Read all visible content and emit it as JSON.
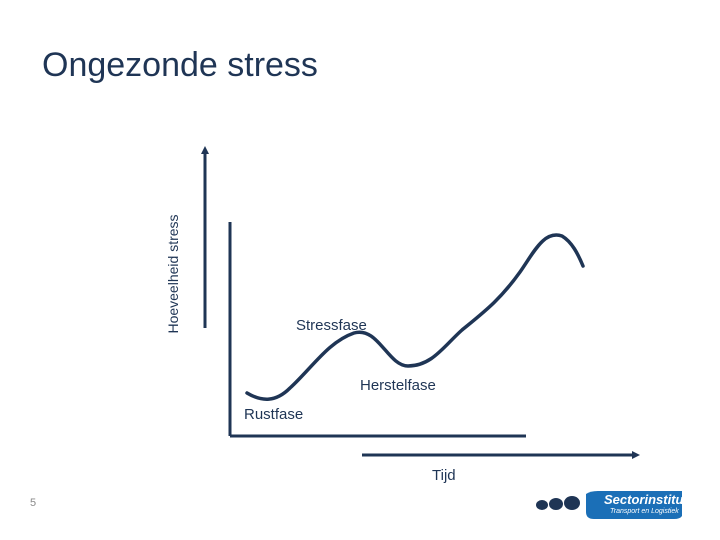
{
  "slide": {
    "title": "Ongezonde stress",
    "page_number": "5"
  },
  "diagram": {
    "y_axis_label": "Hoeveelheid stress",
    "x_axis_label": "Tijd",
    "phases": {
      "rest": "Rustfase",
      "stress": "Stressfase",
      "recovery": "Herstelfase"
    }
  },
  "logo": {
    "name": "Sectorinstituut",
    "subtitle": "Transport en Logistiek"
  },
  "colors": {
    "text": "#1f3555",
    "line": "#1f3555",
    "logo_blue": "#1b6fb7",
    "logo_dark": "#1f3555"
  }
}
